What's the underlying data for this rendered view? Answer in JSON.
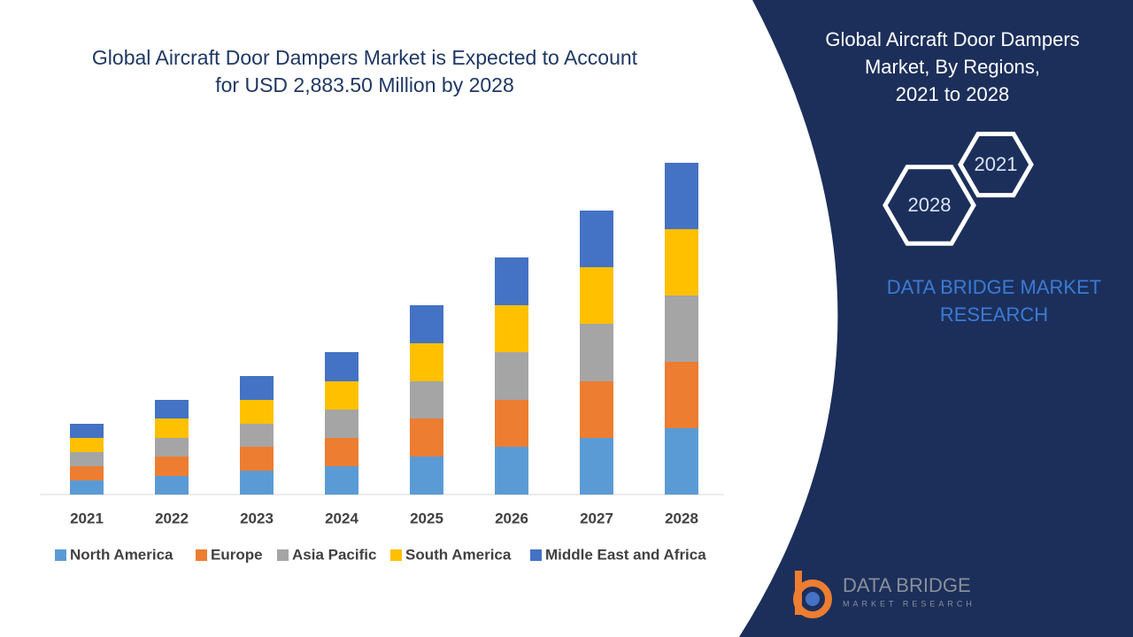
{
  "chart_data": {
    "type": "stacked-bar",
    "title_lines": [
      "Global Aircraft Door Dampers Market is Expected to Account",
      "for USD 2,883.50 Million by 2028"
    ],
    "categories": [
      "2021",
      "2022",
      "2023",
      "2024",
      "2025",
      "2026",
      "2027",
      "2028"
    ],
    "ylim": [
      0,
      400
    ],
    "series": [
      {
        "name": "North America",
        "color": "#5b9bd5",
        "values": [
          16,
          21,
          27,
          32,
          43,
          54,
          64,
          75
        ]
      },
      {
        "name": "Europe",
        "color": "#ed7d31",
        "values": [
          16,
          22,
          27,
          32,
          43,
          53,
          64,
          75
        ]
      },
      {
        "name": "Asia Pacific",
        "color": "#a5a5a5",
        "values": [
          16,
          21,
          26,
          32,
          42,
          54,
          65,
          75
        ]
      },
      {
        "name": "South America",
        "color": "#ffc000",
        "values": [
          16,
          22,
          27,
          32,
          43,
          53,
          64,
          75
        ]
      },
      {
        "name": "Middle East and Africa",
        "color": "#4472c4",
        "values": [
          16,
          21,
          27,
          33,
          43,
          54,
          64,
          75
        ]
      }
    ],
    "legend": "bottom"
  },
  "panel": {
    "title_lines": [
      "Global Aircraft Door Dampers",
      "Market, By Regions,",
      "2021 to 2028"
    ],
    "hexagons": [
      "2021",
      "2028"
    ],
    "brand_lines": [
      "DATA BRIDGE MARKET",
      "RESEARCH"
    ]
  },
  "logo": {
    "name": "DATA BRIDGE",
    "tagline": "MARKET RESEARCH"
  }
}
